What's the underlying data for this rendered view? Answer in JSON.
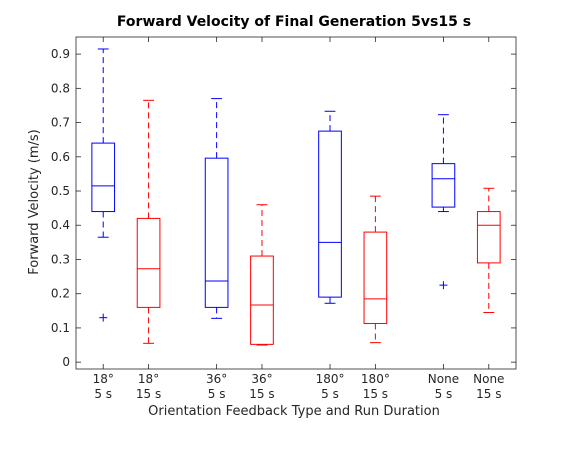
{
  "chart_data": {
    "type": "box",
    "title": "Forward Velocity of Final Generation 5vs15 s",
    "xlabel": "Orientation Feedback Type and Run Duration",
    "ylabel": "Forward Velocity (m/s)",
    "ylim": [
      -0.02,
      0.95
    ],
    "yticks": [
      "0",
      "0.1",
      "0.2",
      "0.3",
      "0.4",
      "0.5",
      "0.6",
      "0.7",
      "0.8",
      "0.9"
    ],
    "colors": {
      "5 s": "#0000ff",
      "15 s": "#ff0000"
    },
    "groups": [
      {
        "position": 1,
        "label": [
          "18°",
          "5 s"
        ],
        "color": "#0000ff",
        "whisker_low": 0.365,
        "q1": 0.44,
        "median": 0.515,
        "q3": 0.64,
        "whisker_high": 0.915,
        "outliers": [
          0.13
        ]
      },
      {
        "position": 2,
        "label": [
          "18°",
          "15 s"
        ],
        "color": "#ff0000",
        "whisker_low": 0.055,
        "q1": 0.16,
        "median": 0.273,
        "q3": 0.42,
        "whisker_high": 0.765,
        "outliers": []
      },
      {
        "position": 3.5,
        "label": [
          "36°",
          "5 s"
        ],
        "color": "#0000ff",
        "whisker_low": 0.128,
        "q1": 0.16,
        "median": 0.237,
        "q3": 0.596,
        "whisker_high": 0.77,
        "outliers": []
      },
      {
        "position": 4.5,
        "label": [
          "36°",
          "15 s"
        ],
        "color": "#ff0000",
        "whisker_low": 0.05,
        "q1": 0.052,
        "median": 0.167,
        "q3": 0.31,
        "whisker_high": 0.46,
        "outliers": []
      },
      {
        "position": 6,
        "label": [
          "180°",
          "5 s"
        ],
        "color": "#0000ff",
        "whisker_low": 0.172,
        "q1": 0.19,
        "median": 0.35,
        "q3": 0.675,
        "whisker_high": 0.733,
        "outliers": []
      },
      {
        "position": 7,
        "label": [
          "180°",
          "15 s"
        ],
        "color": "#ff0000",
        "whisker_low": 0.057,
        "q1": 0.113,
        "median": 0.185,
        "q3": 0.38,
        "whisker_high": 0.485,
        "outliers": []
      },
      {
        "position": 8.5,
        "label": [
          "None",
          "5 s"
        ],
        "color": "#0000ff",
        "whisker_low": 0.44,
        "q1": 0.453,
        "median": 0.536,
        "q3": 0.58,
        "whisker_high": 0.723,
        "outliers": [
          0.225
        ]
      },
      {
        "position": 9.5,
        "label": [
          "None",
          "15 s"
        ],
        "color": "#ff0000",
        "whisker_low": 0.145,
        "q1": 0.29,
        "median": 0.4,
        "q3": 0.44,
        "whisker_high": 0.508,
        "outliers": []
      }
    ],
    "xlim": [
      0.4,
      10.1
    ],
    "grid": false,
    "legend": "none"
  }
}
